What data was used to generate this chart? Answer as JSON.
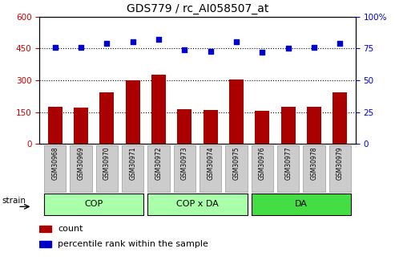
{
  "title": "GDS779 / rc_AI058507_at",
  "categories": [
    "GSM30968",
    "GSM30969",
    "GSM30970",
    "GSM30971",
    "GSM30972",
    "GSM30973",
    "GSM30974",
    "GSM30975",
    "GSM30976",
    "GSM30977",
    "GSM30978",
    "GSM30979"
  ],
  "bar_values": [
    175,
    173,
    245,
    300,
    325,
    163,
    160,
    303,
    155,
    175,
    175,
    243
  ],
  "percentile_values": [
    76,
    76,
    79,
    80,
    82,
    74,
    73,
    80,
    72,
    75,
    76,
    79
  ],
  "bar_color": "#AA0000",
  "dot_color": "#0000CC",
  "left_ylim": [
    0,
    600
  ],
  "right_ylim": [
    0,
    100
  ],
  "left_yticks": [
    0,
    150,
    300,
    450,
    600
  ],
  "right_yticks": [
    0,
    25,
    50,
    75,
    100
  ],
  "left_yticklabels": [
    "0",
    "150",
    "300",
    "450",
    "600"
  ],
  "right_yticklabels": [
    "0",
    "25",
    "50",
    "75",
    "100%"
  ],
  "groups": [
    {
      "label": "COP",
      "start": 0,
      "end": 3,
      "color": "#AAFFAA"
    },
    {
      "label": "COP x DA",
      "start": 4,
      "end": 7,
      "color": "#AAFFAA"
    },
    {
      "label": "DA",
      "start": 8,
      "end": 11,
      "color": "#44DD44"
    }
  ],
  "strain_label": "strain",
  "legend_count_label": "count",
  "legend_pct_label": "percentile rank within the sample",
  "tick_bg_color": "#CCCCCC",
  "plot_bg_color": "#FFFFFF"
}
